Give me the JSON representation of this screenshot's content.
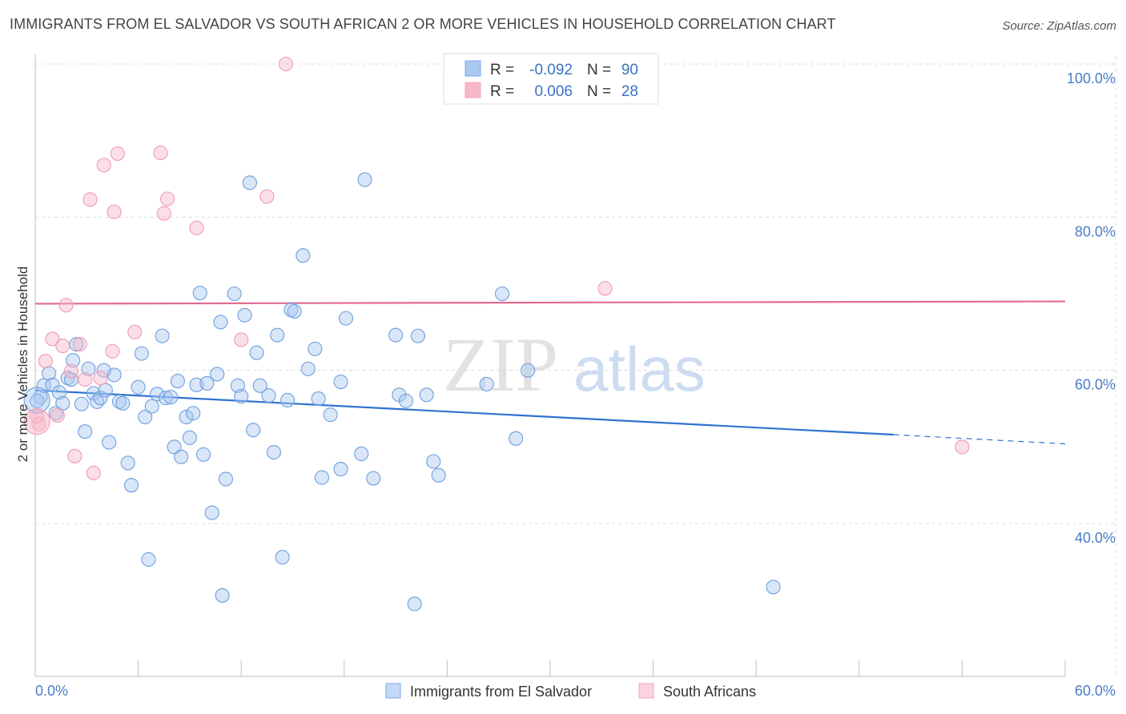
{
  "header": {
    "title": "IMMIGRANTS FROM EL SALVADOR VS SOUTH AFRICAN 2 OR MORE VEHICLES IN HOUSEHOLD CORRELATION CHART",
    "source": "Source: ZipAtlas.com"
  },
  "legend": {
    "r_label": "R =",
    "n_label": "N =",
    "rows": [
      {
        "r": "-0.092",
        "n": "90",
        "color": "#a8c8f0"
      },
      {
        "r": "0.006",
        "n": "28",
        "color": "#f7b8c8"
      }
    ]
  },
  "bottom_legend": [
    "Immigrants from El Salvador",
    "South Africans"
  ],
  "watermark": {
    "zip": "ZIP",
    "atlas": "atlas"
  },
  "chart_data": {
    "type": "scatter",
    "title": "IMMIGRANTS FROM EL SALVADOR VS SOUTH AFRICAN 2 OR MORE VEHICLES IN HOUSEHOLD CORRELATION CHART",
    "xlabel": "",
    "ylabel": "2 or more Vehicles in Household",
    "xlim": [
      0,
      60
    ],
    "ylim": [
      20,
      102
    ],
    "x_tick_labels": [
      "0.0%",
      "60.0%"
    ],
    "y_ticks": [
      40,
      60,
      80,
      100
    ],
    "y_tick_labels": [
      "40.0%",
      "60.0%",
      "80.0%",
      "100.0%"
    ],
    "grid": true,
    "series": [
      {
        "name": "Immigrants from El Salvador",
        "color": "#7aaae8",
        "trend": {
          "x0": 0.0,
          "y0": 57.4,
          "x1": 50.0,
          "y1": 51.6,
          "dash_to_x": 60.0,
          "dash_to_y": 50.4
        },
        "points": [
          [
            0.3,
            56.5
          ],
          [
            0.5,
            58.0
          ],
          [
            0.8,
            59.6
          ],
          [
            1.0,
            58.1
          ],
          [
            1.2,
            54.4
          ],
          [
            1.4,
            57.1
          ],
          [
            1.6,
            55.7
          ],
          [
            1.9,
            59.0
          ],
          [
            2.2,
            61.3
          ],
          [
            2.4,
            63.4
          ],
          [
            2.7,
            55.6
          ],
          [
            2.9,
            52.0
          ],
          [
            3.1,
            60.2
          ],
          [
            3.4,
            57.0
          ],
          [
            3.6,
            55.9
          ],
          [
            3.8,
            56.4
          ],
          [
            4.1,
            57.4
          ],
          [
            4.3,
            50.6
          ],
          [
            4.6,
            59.4
          ],
          [
            4.9,
            55.9
          ],
          [
            5.1,
            55.7
          ],
          [
            5.4,
            47.9
          ],
          [
            5.6,
            45.0
          ],
          [
            6.0,
            57.8
          ],
          [
            6.2,
            62.2
          ],
          [
            6.4,
            53.9
          ],
          [
            6.6,
            35.3
          ],
          [
            6.8,
            55.3
          ],
          [
            7.1,
            56.9
          ],
          [
            7.4,
            64.5
          ],
          [
            7.6,
            56.4
          ],
          [
            7.9,
            56.5
          ],
          [
            8.1,
            50.0
          ],
          [
            8.3,
            58.6
          ],
          [
            8.5,
            48.7
          ],
          [
            8.8,
            53.9
          ],
          [
            9.0,
            51.2
          ],
          [
            9.2,
            54.4
          ],
          [
            9.4,
            58.1
          ],
          [
            9.6,
            70.1
          ],
          [
            9.8,
            49.0
          ],
          [
            10.0,
            58.3
          ],
          [
            10.3,
            41.4
          ],
          [
            10.6,
            59.5
          ],
          [
            10.8,
            66.3
          ],
          [
            10.9,
            30.6
          ],
          [
            11.1,
            45.8
          ],
          [
            11.6,
            70.0
          ],
          [
            11.8,
            58.0
          ],
          [
            12.0,
            56.6
          ],
          [
            12.2,
            67.2
          ],
          [
            12.5,
            84.5
          ],
          [
            12.7,
            52.2
          ],
          [
            12.9,
            62.3
          ],
          [
            13.1,
            58.0
          ],
          [
            13.6,
            56.7
          ],
          [
            13.9,
            49.3
          ],
          [
            14.1,
            64.6
          ],
          [
            14.4,
            35.6
          ],
          [
            14.7,
            56.1
          ],
          [
            14.9,
            67.9
          ],
          [
            15.1,
            67.7
          ],
          [
            15.6,
            75.0
          ],
          [
            15.9,
            60.2
          ],
          [
            16.3,
            62.8
          ],
          [
            16.5,
            56.3
          ],
          [
            16.7,
            46.0
          ],
          [
            17.2,
            54.2
          ],
          [
            17.8,
            58.5
          ],
          [
            17.8,
            47.1
          ],
          [
            18.1,
            66.8
          ],
          [
            19.0,
            49.1
          ],
          [
            19.2,
            84.9
          ],
          [
            19.7,
            45.9
          ],
          [
            21.0,
            64.6
          ],
          [
            21.2,
            56.8
          ],
          [
            21.6,
            56.0
          ],
          [
            22.1,
            29.5
          ],
          [
            22.3,
            64.5
          ],
          [
            22.8,
            56.8
          ],
          [
            23.2,
            48.1
          ],
          [
            23.5,
            46.3
          ],
          [
            26.3,
            58.2
          ],
          [
            27.2,
            70.0
          ],
          [
            28.0,
            51.1
          ],
          [
            28.7,
            60.0
          ],
          [
            43.0,
            31.7
          ],
          [
            0.1,
            56.0
          ],
          [
            4.0,
            60.0
          ],
          [
            2.1,
            58.8
          ]
        ]
      },
      {
        "name": "South Africans",
        "color": "#f4a4bc",
        "trend": {
          "x0": 0.0,
          "y0": 68.7,
          "x1": 60.0,
          "y1": 69.0
        },
        "points": [
          [
            0.2,
            53.0
          ],
          [
            0.6,
            61.2
          ],
          [
            1.0,
            64.1
          ],
          [
            1.3,
            54.1
          ],
          [
            1.6,
            63.2
          ],
          [
            1.8,
            68.5
          ],
          [
            2.1,
            59.9
          ],
          [
            2.3,
            48.8
          ],
          [
            2.6,
            63.4
          ],
          [
            2.9,
            58.8
          ],
          [
            3.2,
            82.3
          ],
          [
            3.4,
            46.6
          ],
          [
            3.8,
            59.0
          ],
          [
            4.0,
            86.8
          ],
          [
            4.5,
            62.5
          ],
          [
            4.6,
            80.7
          ],
          [
            4.8,
            88.3
          ],
          [
            5.8,
            65.0
          ],
          [
            7.3,
            88.4
          ],
          [
            7.5,
            80.5
          ],
          [
            7.7,
            82.4
          ],
          [
            9.4,
            78.6
          ],
          [
            12.0,
            64.0
          ],
          [
            13.5,
            82.7
          ],
          [
            14.6,
            100.0
          ],
          [
            33.2,
            70.7
          ],
          [
            54.0,
            50.0
          ],
          [
            0.1,
            54.0
          ]
        ]
      }
    ]
  }
}
